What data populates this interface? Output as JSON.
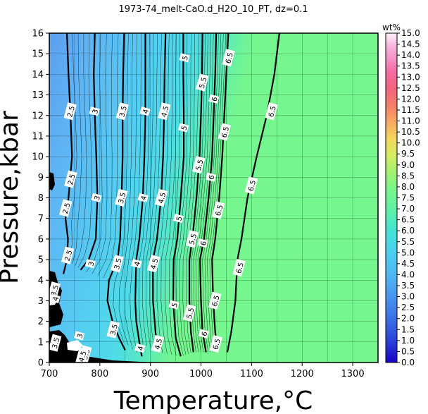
{
  "chart_data": {
    "type": "contour",
    "title": "1973-74_melt-CaO.d_H2O_10_PT, dz=0.1",
    "xlabel": "Temperature,°C",
    "ylabel": "Pressure,kbar",
    "xlim": [
      700,
      1350
    ],
    "ylim": [
      0,
      16
    ],
    "x_ticks": [
      "700",
      "800",
      "900",
      "1000",
      "1100",
      "1200",
      "1300"
    ],
    "y_ticks": [
      "0",
      "1",
      "2",
      "3",
      "4",
      "5",
      "6",
      "7",
      "8",
      "9",
      "10",
      "11",
      "12",
      "13",
      "14",
      "15",
      "16"
    ],
    "grid": true,
    "colorbar": {
      "unit": "wt%",
      "range": [
        0.0,
        15.0
      ],
      "ticks": [
        "0.0",
        "0.5",
        "1.0",
        "1.5",
        "2.0",
        "2.5",
        "3.0",
        "3.5",
        "4.0",
        "4.5",
        "5.0",
        "5.5",
        "6.0",
        "6.5",
        "7.0",
        "7.5",
        "8.0",
        "8.5",
        "9.0",
        "9.5",
        "10.0",
        "10.5",
        "11.0",
        "11.5",
        "12.0",
        "12.5",
        "13.0",
        "13.5",
        "14.0",
        "14.5",
        "15.0"
      ],
      "colors": [
        "#1a00c8",
        "#2a3dd6",
        "#3b6fe4",
        "#4a95ee",
        "#50b4f2",
        "#4ccff0",
        "#45e2d6",
        "#5ef0a8",
        "#7cf58a",
        "#a6f070",
        "#d6ec62",
        "#f4d65e",
        "#f7a963",
        "#f47f6a",
        "#f2657e",
        "#f36aa0",
        "#f48fc4",
        "#f6b4dc",
        "#fad4ec",
        "#fdf0f8"
      ],
      "position": "right"
    },
    "contours": [
      {
        "level": 2.5,
        "points": [
          [
            735,
            16
          ],
          [
            738,
            14
          ],
          [
            742,
            12
          ],
          [
            745,
            10
          ],
          [
            738,
            8
          ],
          [
            732,
            7
          ],
          [
            737,
            6
          ],
          [
            735,
            5
          ],
          [
            728,
            4.3
          ]
        ]
      },
      {
        "level": 3.0,
        "points": [
          [
            790,
            16
          ],
          [
            788,
            14
          ],
          [
            790,
            12
          ],
          [
            793,
            10
          ],
          [
            795,
            8
          ],
          [
            792,
            6
          ],
          [
            778,
            5
          ],
          [
            762,
            4.5
          ]
        ]
      },
      {
        "level": 3.5,
        "points": [
          [
            848,
            16
          ],
          [
            846,
            14
          ],
          [
            845,
            12
          ],
          [
            845,
            10
          ],
          [
            843,
            8
          ],
          [
            840,
            6
          ],
          [
            835,
            5
          ],
          [
            818,
            4
          ],
          [
            815,
            3
          ],
          [
            825,
            2
          ],
          [
            838,
            1.2
          ],
          [
            850,
            0.6
          ]
        ]
      },
      {
        "level": 4.0,
        "points": [
          [
            890,
            16
          ],
          [
            890,
            14
          ],
          [
            890,
            12
          ],
          [
            888,
            10
          ],
          [
            885,
            8
          ],
          [
            878,
            6
          ],
          [
            872,
            5
          ],
          [
            870,
            3
          ],
          [
            872,
            2
          ],
          [
            878,
            1
          ],
          [
            883,
            0.3
          ]
        ]
      },
      {
        "level": 4.5,
        "points": [
          [
            930,
            16
          ],
          [
            928,
            14
          ],
          [
            927,
            12
          ],
          [
            925,
            10
          ],
          [
            921,
            8
          ],
          [
            913,
            6
          ],
          [
            905,
            5
          ],
          [
            905,
            3
          ],
          [
            910,
            1.5
          ],
          [
            915,
            0.5
          ]
        ]
      },
      {
        "level": 5.0,
        "points": [
          [
            965,
            16
          ],
          [
            965,
            14
          ],
          [
            966,
            12
          ],
          [
            966,
            10
          ],
          [
            960,
            8
          ],
          [
            953,
            6
          ],
          [
            946,
            5
          ],
          [
            945,
            3
          ],
          [
            950,
            1.2
          ],
          [
            960,
            0.3
          ]
        ]
      },
      {
        "level": 5.5,
        "points": [
          [
            1003,
            16
          ],
          [
            1002,
            14
          ],
          [
            1000,
            12
          ],
          [
            997,
            10
          ],
          [
            991,
            8
          ],
          [
            983,
            6
          ],
          [
            977,
            5
          ],
          [
            977,
            3
          ],
          [
            980,
            1.5
          ],
          [
            985,
            0.5
          ]
        ]
      },
      {
        "level": 6.0,
        "points": [
          [
            1030,
            16
          ],
          [
            1028,
            14
          ],
          [
            1025,
            12
          ],
          [
            1022,
            10
          ],
          [
            1015,
            8
          ],
          [
            1006,
            6
          ],
          [
            998,
            5
          ],
          [
            1000,
            3
          ],
          [
            1003,
            1.5
          ],
          [
            1010,
            0.5
          ]
        ]
      },
      {
        "level": 6.5,
        "points": [
          [
            1054,
            16
          ],
          [
            1050,
            14
          ],
          [
            1046,
            12
          ],
          [
            1042,
            10
          ],
          [
            1036,
            8
          ],
          [
            1028,
            6
          ],
          [
            1022,
            5
          ],
          [
            1024,
            3
          ],
          [
            1028,
            1.5
          ],
          [
            1032,
            0.5
          ]
        ]
      },
      {
        "level": 6.5,
        "points": [
          [
            1155,
            16
          ],
          [
            1145,
            14
          ],
          [
            1130,
            12
          ],
          [
            1110,
            10
          ],
          [
            1092,
            8
          ],
          [
            1080,
            6
          ],
          [
            1072,
            5
          ],
          [
            1068,
            3
          ],
          [
            1060,
            1.5
          ],
          [
            1052,
            0.5
          ]
        ]
      }
    ],
    "contour_labels": [
      {
        "text": "2.5",
        "x": 742,
        "y": 12.2
      },
      {
        "text": "2.5",
        "x": 743,
        "y": 8.9
      },
      {
        "text": "2.5",
        "x": 733,
        "y": 7.5
      },
      {
        "text": "2.5",
        "x": 737,
        "y": 5.2
      },
      {
        "text": "3",
        "x": 790,
        "y": 12.2
      },
      {
        "text": "3",
        "x": 794,
        "y": 8.0
      },
      {
        "text": "3",
        "x": 782,
        "y": 4.8
      },
      {
        "text": "3.5",
        "x": 845,
        "y": 12.2
      },
      {
        "text": "3.5",
        "x": 843,
        "y": 8.0
      },
      {
        "text": "3.5",
        "x": 835,
        "y": 4.8
      },
      {
        "text": "3.5",
        "x": 827,
        "y": 1.6
      },
      {
        "text": "4",
        "x": 890,
        "y": 12.2
      },
      {
        "text": "4",
        "x": 886,
        "y": 8.0
      },
      {
        "text": "4",
        "x": 873,
        "y": 4.8
      },
      {
        "text": "4",
        "x": 880,
        "y": 0.7
      },
      {
        "text": "4.5",
        "x": 928,
        "y": 12.2
      },
      {
        "text": "4.5",
        "x": 922,
        "y": 8.0
      },
      {
        "text": "4.5",
        "x": 907,
        "y": 4.8
      },
      {
        "text": "4.5",
        "x": 915,
        "y": 0.9
      },
      {
        "text": "5",
        "x": 968,
        "y": 14.8
      },
      {
        "text": "5",
        "x": 966,
        "y": 11.4
      },
      {
        "text": "5",
        "x": 956,
        "y": 7.0
      },
      {
        "text": "5",
        "x": 947,
        "y": 2.8
      },
      {
        "text": "5.5",
        "x": 1003,
        "y": 13.6
      },
      {
        "text": "5.5",
        "x": 996,
        "y": 9.6
      },
      {
        "text": "5.5",
        "x": 983,
        "y": 6.0
      },
      {
        "text": "5.5",
        "x": 978,
        "y": 2.4
      },
      {
        "text": "6",
        "x": 1026,
        "y": 12.8
      },
      {
        "text": "6",
        "x": 1020,
        "y": 9.0
      },
      {
        "text": "6",
        "x": 1004,
        "y": 5.8
      },
      {
        "text": "6",
        "x": 1006,
        "y": 1.4
      },
      {
        "text": "6.5",
        "x": 1055,
        "y": 14.8
      },
      {
        "text": "6.5",
        "x": 1047,
        "y": 11.2
      },
      {
        "text": "6.5",
        "x": 1035,
        "y": 7.4
      },
      {
        "text": "6.5",
        "x": 1028,
        "y": 3.0
      },
      {
        "text": "6.5",
        "x": 1030,
        "y": 0.9
      },
      {
        "text": "6.5",
        "x": 1140,
        "y": 12.2
      },
      {
        "text": "6.5",
        "x": 1100,
        "y": 8.6
      },
      {
        "text": "6.5",
        "x": 1076,
        "y": 4.6
      },
      {
        "text": "3.5",
        "x": 710,
        "y": 3.5
      },
      {
        "text": "4",
        "x": 712,
        "y": 3.1
      },
      {
        "text": "3.5",
        "x": 712,
        "y": 0.95
      },
      {
        "text": "3",
        "x": 760,
        "y": 1.3
      },
      {
        "text": "3.5",
        "x": 772,
        "y": 0.4
      },
      {
        "text": "4.5",
        "x": 765,
        "y": 0.3
      }
    ]
  }
}
